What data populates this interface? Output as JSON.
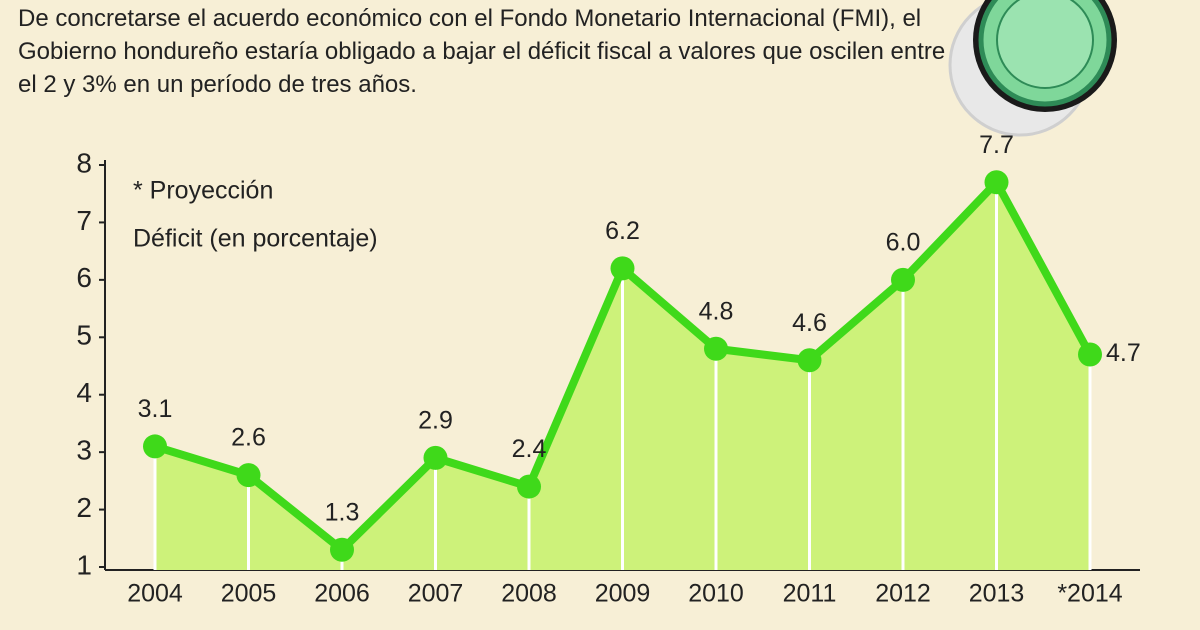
{
  "chart_data": {
    "type": "area",
    "title": "De concretarse el acuerdo económico con el Fondo Monetario Internacional (FMI), el Gobierno hondureño estaría obligado a bajar el déficit fiscal a valores que oscilen entre el 2 y 3% en un período de tres años.",
    "annotations": [
      "* Proyección",
      "Déficit (en porcentaje)"
    ],
    "categories": [
      "2004",
      "2005",
      "2006",
      "2007",
      "2008",
      "2009",
      "2010",
      "2011",
      "2012",
      "2013",
      "*2014"
    ],
    "values": [
      3.1,
      2.6,
      1.3,
      2.9,
      2.4,
      6.2,
      4.8,
      4.6,
      6.0,
      7.7,
      4.7
    ],
    "value_labels": [
      "3.1",
      "2.6",
      "1.3",
      "2.9",
      "2.4",
      "6.2",
      "4.8",
      "4.6",
      "6.0",
      "7.7",
      "4.7"
    ],
    "color": "#3fd91a",
    "area_color": "#cdf27a",
    "ylim": [
      1,
      8
    ],
    "yticks": [
      1,
      2,
      3,
      4,
      5,
      6,
      7,
      8
    ]
  }
}
